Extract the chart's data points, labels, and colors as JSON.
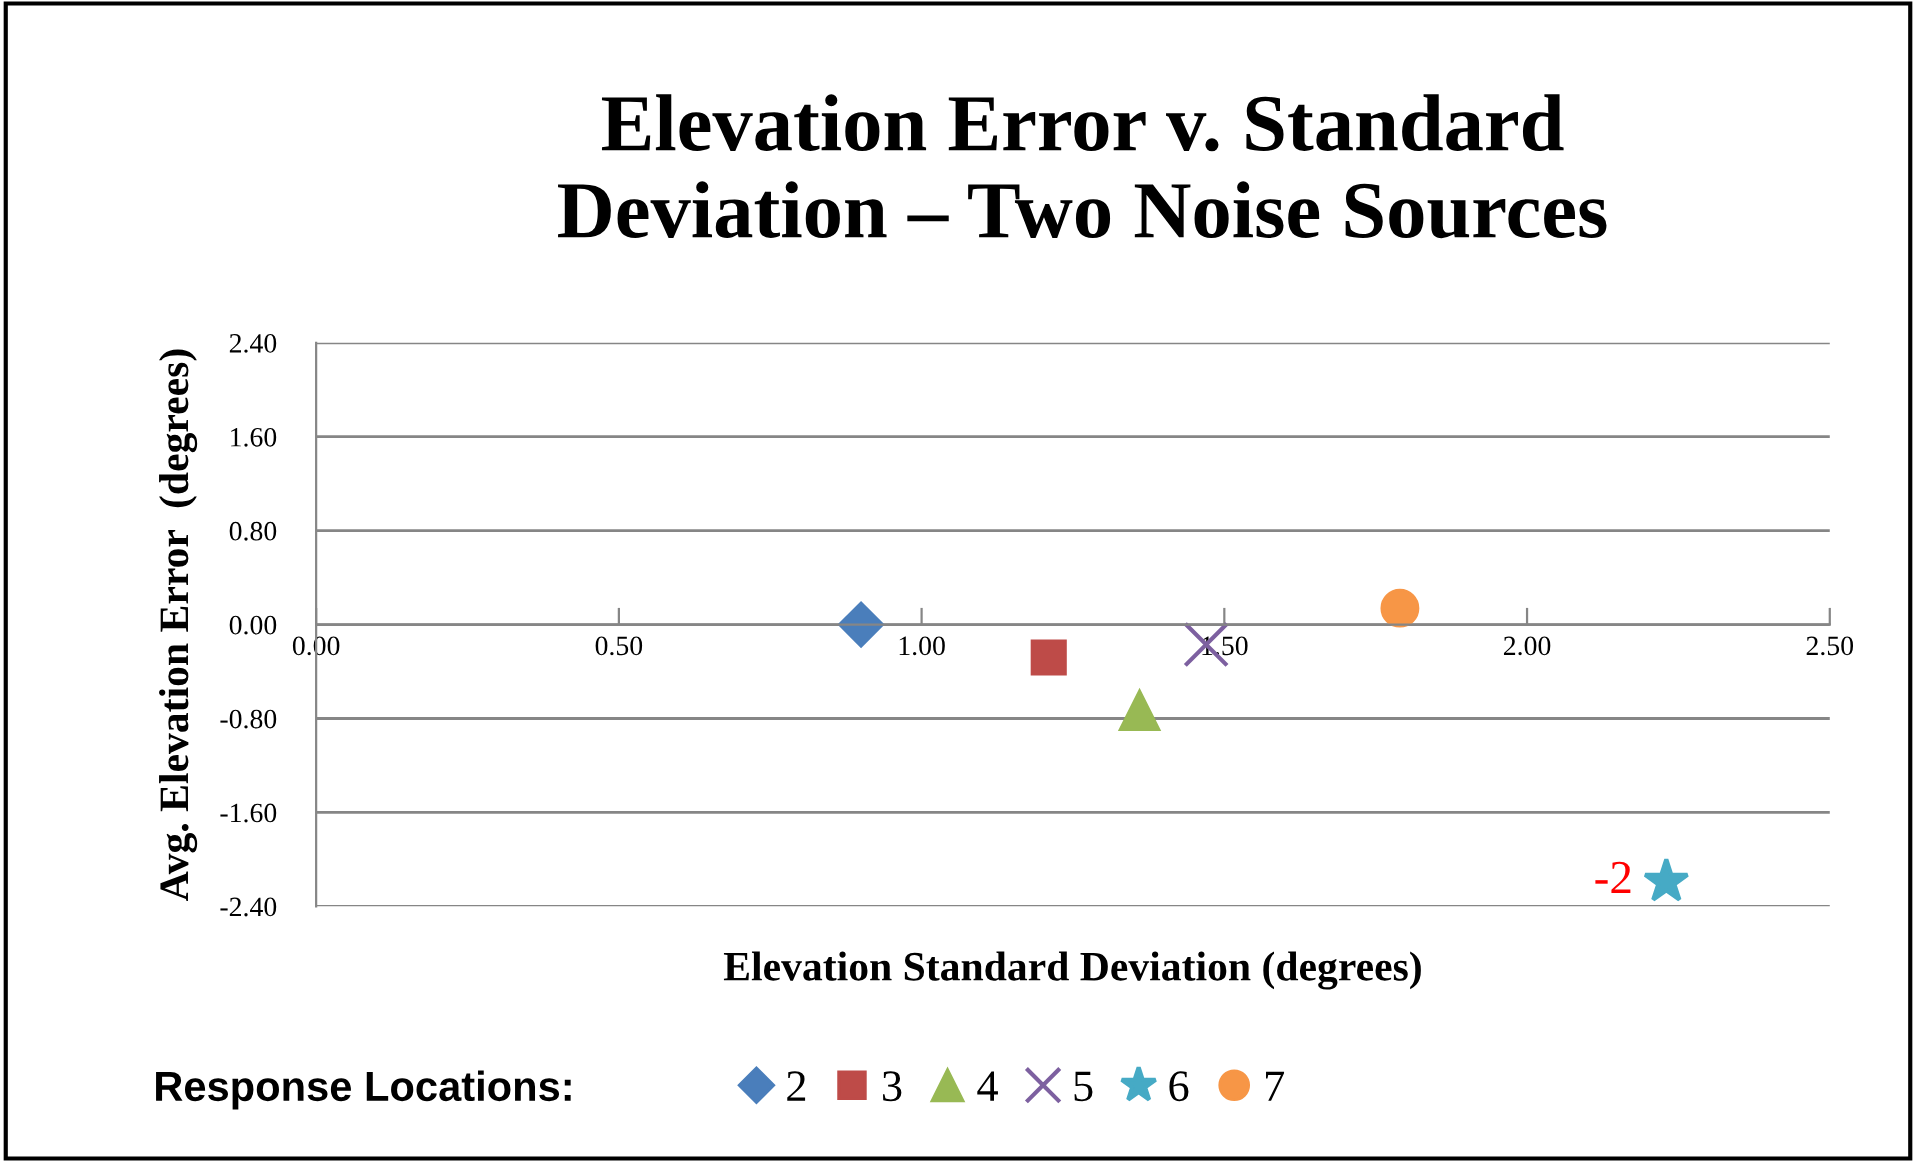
{
  "chart_data": {
    "type": "scatter",
    "title": "Elevation Error v. Standard Deviation – Two Noise Sources",
    "xlabel": "Elevation Standard Deviation (degrees)",
    "ylabel": "Avg. Elevation Error  (degrees)",
    "legend_title": "Response Locations:",
    "legend": "bottom",
    "grid": "y",
    "xlim": [
      0,
      2.5
    ],
    "xticks": [
      {
        "value": 0,
        "label": "0.00"
      },
      {
        "value": 0.5,
        "label": "0.50"
      },
      {
        "value": 1,
        "label": "1.00"
      },
      {
        "value": 1.5,
        "label": "1.50"
      },
      {
        "value": 2,
        "label": "2.00"
      },
      {
        "value": 2.5,
        "label": "2.50"
      }
    ],
    "ylim": [
      -2.4,
      2.4
    ],
    "yticks": [
      {
        "value": -2.4,
        "label": "-2.40"
      },
      {
        "value": -1.6,
        "label": "-1.60"
      },
      {
        "value": -0.8,
        "label": "-0.80"
      },
      {
        "value": 0,
        "label": "0.00"
      },
      {
        "value": 0.8,
        "label": "0.80"
      },
      {
        "value": 1.6,
        "label": "1.60"
      },
      {
        "value": 2.4,
        "label": "2.40"
      }
    ],
    "series": [
      {
        "name": "2",
        "color": "#4a7ebb",
        "marker": "diamond",
        "x": [
          0.9
        ],
        "values": [
          0.0
        ]
      },
      {
        "name": "3",
        "color": "#be4b48",
        "marker": "square",
        "x": [
          1.21
        ],
        "values": [
          -0.28
        ]
      },
      {
        "name": "4",
        "color": "#98b954",
        "marker": "triangle",
        "x": [
          1.36
        ],
        "values": [
          -0.73
        ]
      },
      {
        "name": "5",
        "color": "#7d60a0",
        "marker": "cross",
        "x": [
          1.47
        ],
        "values": [
          -0.17
        ]
      },
      {
        "name": "6",
        "color": "#46aac5",
        "marker": "star",
        "x": [
          2.23
        ],
        "values": [
          -2.19
        ]
      },
      {
        "name": "7",
        "color": "#f79646",
        "marker": "circle",
        "x": [
          1.79
        ],
        "values": [
          0.14
        ]
      }
    ],
    "annotations": [
      {
        "text": "-2",
        "x": 2.23,
        "y": -2.19
      }
    ]
  }
}
